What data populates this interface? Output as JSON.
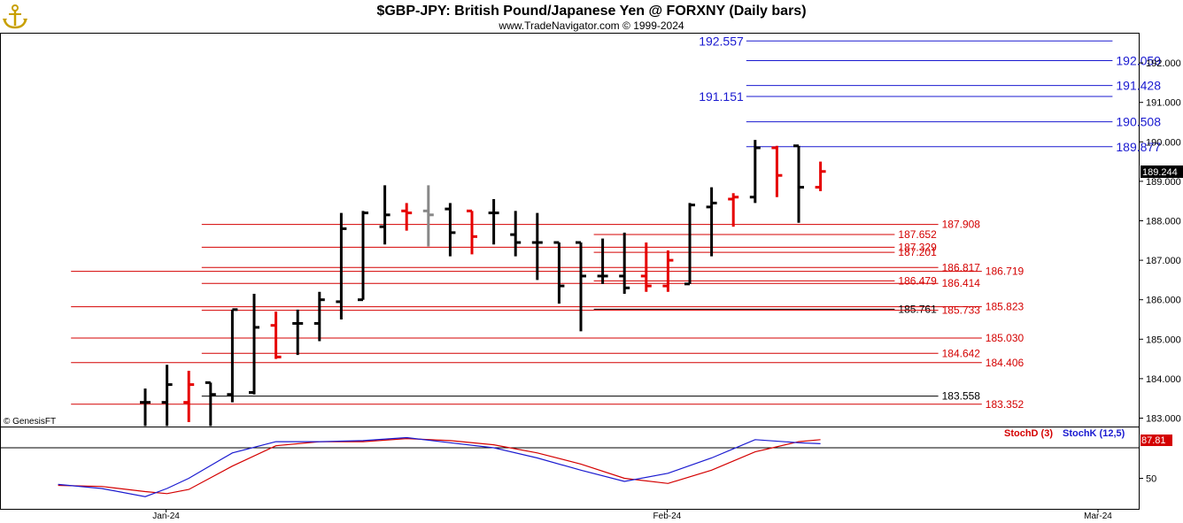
{
  "header": {
    "title": "$GBP-JPY:  British Pound/Japanese Yen @ FORXNY  (Daily bars)",
    "subtitle": "www.TradeNavigator.com © 1999-2024",
    "watermark": "© GenesisFT",
    "logo_icon": "anchor-logo-icon"
  },
  "colors": {
    "up_bar": "#000000",
    "down_bar": "#e60000",
    "neutral_bar": "#888888",
    "support_line": "#d40000",
    "resistance_line": "#1a1ad0",
    "stoch_d": "#d40000",
    "stoch_k": "#1a1ad0",
    "last_price_tag": "#000000",
    "stoch_tag": "#d40000"
  },
  "chart_data": [
    {
      "type": "ohlc",
      "title": "$GBP-JPY:  British Pound/Japanese Yen @ FORXNY  (Daily bars)",
      "ylim": [
        182.8,
        193.0
      ],
      "y_ticks": [
        "183.000",
        "184.000",
        "185.000",
        "186.000",
        "187.000",
        "188.000",
        "189.000",
        "190.000",
        "191.000",
        "192.000"
      ],
      "x_tick_labels": [
        {
          "label": "Jan-24",
          "index": 1
        },
        {
          "label": "Feb-24",
          "index": 24
        },
        {
          "label": "Mar-24",
          "index": 45
        }
      ],
      "last_price": "189.244",
      "bars": [
        {
          "i": 0,
          "o": 183.4,
          "h": 183.75,
          "l": 182.8,
          "c": 183.4,
          "color": "black"
        },
        {
          "i": 1,
          "o": 183.4,
          "h": 184.35,
          "l": 182.8,
          "c": 183.85,
          "color": "black"
        },
        {
          "i": 2,
          "o": 183.4,
          "h": 184.2,
          "l": 182.9,
          "c": 183.85,
          "color": "red"
        },
        {
          "i": 3,
          "o": 183.9,
          "h": 183.9,
          "l": 182.8,
          "c": 183.6,
          "color": "black"
        },
        {
          "i": 4,
          "o": 183.6,
          "h": 185.75,
          "l": 183.4,
          "c": 185.75,
          "color": "black"
        },
        {
          "i": 5,
          "o": 183.65,
          "h": 186.15,
          "l": 183.6,
          "c": 185.3,
          "color": "black"
        },
        {
          "i": 6,
          "o": 185.35,
          "h": 185.7,
          "l": 184.5,
          "c": 184.55,
          "color": "red"
        },
        {
          "i": 7,
          "o": 185.4,
          "h": 185.75,
          "l": 184.6,
          "c": 185.4,
          "color": "black"
        },
        {
          "i": 8,
          "o": 185.4,
          "h": 186.2,
          "l": 184.95,
          "c": 186.0,
          "color": "black"
        },
        {
          "i": 9,
          "o": 185.95,
          "h": 188.2,
          "l": 185.5,
          "c": 187.8,
          "color": "black"
        },
        {
          "i": 10,
          "o": 186.0,
          "h": 188.25,
          "l": 186.0,
          "c": 188.2,
          "color": "black"
        },
        {
          "i": 11,
          "o": 187.85,
          "h": 188.9,
          "l": 187.4,
          "c": 188.15,
          "color": "black"
        },
        {
          "i": 12,
          "o": 188.25,
          "h": 188.45,
          "l": 187.75,
          "c": 188.2,
          "color": "red"
        },
        {
          "i": 13,
          "o": 188.25,
          "h": 188.9,
          "l": 187.35,
          "c": 188.15,
          "color": "gray"
        },
        {
          "i": 14,
          "o": 188.3,
          "h": 188.45,
          "l": 187.1,
          "c": 187.7,
          "color": "black"
        },
        {
          "i": 15,
          "o": 188.25,
          "h": 188.25,
          "l": 187.15,
          "c": 187.6,
          "color": "red"
        },
        {
          "i": 16,
          "o": 188.2,
          "h": 188.55,
          "l": 187.4,
          "c": 188.2,
          "color": "black"
        },
        {
          "i": 17,
          "o": 187.65,
          "h": 188.25,
          "l": 187.1,
          "c": 187.45,
          "color": "black"
        },
        {
          "i": 18,
          "o": 187.45,
          "h": 188.2,
          "l": 186.5,
          "c": 187.45,
          "color": "black"
        },
        {
          "i": 19,
          "o": 187.45,
          "h": 187.45,
          "l": 185.9,
          "c": 186.35,
          "color": "black"
        },
        {
          "i": 20,
          "o": 187.45,
          "h": 187.45,
          "l": 185.2,
          "c": 186.6,
          "color": "black"
        },
        {
          "i": 21,
          "o": 186.6,
          "h": 187.55,
          "l": 186.4,
          "c": 186.6,
          "color": "black"
        },
        {
          "i": 22,
          "o": 186.6,
          "h": 187.7,
          "l": 186.15,
          "c": 186.3,
          "color": "black"
        },
        {
          "i": 23,
          "o": 186.6,
          "h": 187.45,
          "l": 186.2,
          "c": 186.35,
          "color": "red"
        },
        {
          "i": 24,
          "o": 186.35,
          "h": 187.25,
          "l": 186.2,
          "c": 187.0,
          "color": "red"
        },
        {
          "i": 25,
          "o": 186.4,
          "h": 188.45,
          "l": 186.4,
          "c": 188.4,
          "color": "black"
        },
        {
          "i": 26,
          "o": 188.35,
          "h": 188.85,
          "l": 187.1,
          "c": 188.45,
          "color": "black"
        },
        {
          "i": 27,
          "o": 188.55,
          "h": 188.7,
          "l": 187.85,
          "c": 188.6,
          "color": "red"
        },
        {
          "i": 28,
          "o": 188.6,
          "h": 190.05,
          "l": 188.45,
          "c": 189.85,
          "color": "black"
        },
        {
          "i": 29,
          "o": 189.85,
          "h": 189.9,
          "l": 188.6,
          "c": 189.15,
          "color": "red"
        },
        {
          "i": 30,
          "o": 189.9,
          "h": 189.9,
          "l": 187.95,
          "c": 188.85,
          "color": "black"
        },
        {
          "i": 31,
          "o": 188.85,
          "h": 189.5,
          "l": 188.75,
          "c": 189.25,
          "color": "red"
        }
      ],
      "levels": [
        {
          "value": "192.557",
          "color": "blue",
          "from": 28,
          "to": 44,
          "label_side": "left"
        },
        {
          "value": "192.059",
          "color": "blue",
          "from": 28,
          "to": 44,
          "label_side": "right"
        },
        {
          "value": "191.428",
          "color": "blue",
          "from": 28,
          "to": 44,
          "label_side": "right"
        },
        {
          "value": "191.151",
          "color": "blue",
          "from": 28,
          "to": 44,
          "label_side": "left"
        },
        {
          "value": "190.508",
          "color": "blue",
          "from": 28,
          "to": 44,
          "label_side": "right"
        },
        {
          "value": "189.877",
          "color": "blue",
          "from": 28,
          "to": 44,
          "label_side": "right"
        },
        {
          "value": "187.908",
          "color": "red",
          "from": 3,
          "to": 36,
          "label_side": "right"
        },
        {
          "value": "187.652",
          "color": "red",
          "from": 21,
          "to": 34,
          "label_side": "right"
        },
        {
          "value": "187.329",
          "color": "red",
          "from": 3,
          "to": 34,
          "label_side": "right"
        },
        {
          "value": "187.201",
          "color": "red",
          "from": 21,
          "to": 34,
          "label_side": "right"
        },
        {
          "value": "186.817",
          "color": "red",
          "from": 3,
          "to": 36,
          "label_side": "right"
        },
        {
          "value": "186.719",
          "color": "red",
          "from": -3,
          "to": 38,
          "label_side": "right"
        },
        {
          "value": "186.479",
          "color": "red",
          "from": 21,
          "to": 34,
          "label_side": "right"
        },
        {
          "value": "186.414",
          "color": "red",
          "from": 3,
          "to": 36,
          "label_side": "right"
        },
        {
          "value": "185.823",
          "color": "red",
          "from": -3,
          "to": 38,
          "label_side": "right"
        },
        {
          "value": "185.761",
          "color": "black",
          "from": 21,
          "to": 34,
          "label_side": "right"
        },
        {
          "value": "185.733",
          "color": "red",
          "from": 3,
          "to": 36,
          "label_side": "right"
        },
        {
          "value": "185.030",
          "color": "red",
          "from": -3,
          "to": 38,
          "label_side": "right"
        },
        {
          "value": "184.642",
          "color": "red",
          "from": 3,
          "to": 36,
          "label_side": "right"
        },
        {
          "value": "184.406",
          "color": "red",
          "from": -3,
          "to": 38,
          "label_side": "right"
        },
        {
          "value": "183.558",
          "color": "black",
          "from": 3,
          "to": 36,
          "label_side": "right"
        },
        {
          "value": "183.352",
          "color": "red",
          "from": -3,
          "to": 38,
          "label_side": "right"
        }
      ]
    },
    {
      "type": "line",
      "title": "Stochastic",
      "ylim": [
        20,
        100
      ],
      "y_ticks": [
        "50"
      ],
      "last_value": "87.81",
      "series": [
        {
          "name": "StochD (3)",
          "color": "red",
          "x": [
            -4,
            -2,
            0,
            1,
            2,
            4,
            6,
            8,
            10,
            12,
            14,
            16,
            18,
            20,
            22,
            24,
            26,
            28,
            30,
            31
          ],
          "y": [
            43,
            42,
            37,
            35,
            39,
            62,
            82,
            86,
            86,
            89,
            87,
            83,
            75,
            64,
            50,
            45,
            58,
            76,
            86,
            88
          ]
        },
        {
          "name": "StochK (12,5)",
          "color": "blue",
          "x": [
            -4,
            -2,
            0,
            1,
            2,
            4,
            6,
            8,
            10,
            12,
            14,
            16,
            18,
            20,
            22,
            24,
            26,
            28,
            30,
            31
          ],
          "y": [
            44,
            40,
            32,
            40,
            50,
            75,
            86,
            86,
            87,
            90,
            85,
            80,
            70,
            58,
            47,
            55,
            70,
            88,
            85,
            84
          ]
        }
      ]
    }
  ]
}
